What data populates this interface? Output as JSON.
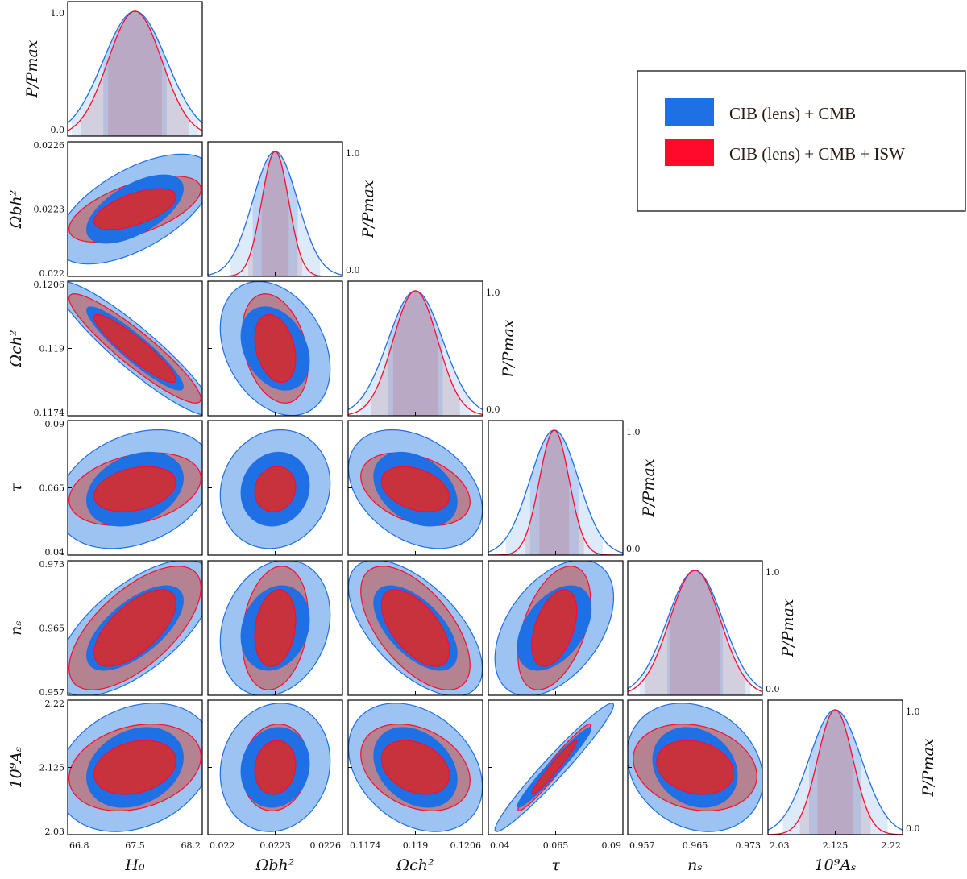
{
  "chart_data": {
    "type": "triangle",
    "parameters": [
      {
        "key": "H0",
        "label": "H₀",
        "ticks": [
          "66.8",
          "67.5",
          "68.2"
        ],
        "range": [
          66.8,
          68.2
        ]
      },
      {
        "key": "Obh2",
        "label": "Ωbh²",
        "ticks": [
          "0.022",
          "0.0223",
          "0.0226"
        ],
        "range": [
          0.022,
          0.0226
        ]
      },
      {
        "key": "Och2",
        "label": "Ωch²",
        "ticks": [
          "0.1174",
          "0.119",
          "0.1206"
        ],
        "range": [
          0.1174,
          0.1206
        ]
      },
      {
        "key": "tau",
        "label": "τ",
        "ticks": [
          "0.04",
          "0.065",
          "0.09"
        ],
        "range": [
          0.04,
          0.09
        ]
      },
      {
        "key": "ns",
        "label": "nₛ",
        "ticks": [
          "0.957",
          "0.965",
          "0.973"
        ],
        "range": [
          0.957,
          0.973
        ]
      },
      {
        "key": "As",
        "label": "10⁹Aₛ",
        "ticks": [
          "2.03",
          "2.125",
          "2.22"
        ],
        "range": [
          2.03,
          2.22
        ]
      }
    ],
    "pmax_label": "P/Pmax",
    "pmax_ticks": [
      "0.0",
      "1.0"
    ],
    "series": [
      {
        "name": "CIB (lens) + CMB",
        "color": "#1f6fe5",
        "fill68": "#1f6fe5",
        "fill95": "#9cc3f2",
        "means": [
          67.5,
          0.0223,
          0.119,
          0.0645,
          0.965,
          2.125
        ],
        "sigma": [
          0.33,
          0.0001,
          0.00065,
          0.009,
          0.0033,
          0.037
        ]
      },
      {
        "name": "CIB (lens) + CMB + ISW",
        "color": "#ff0a2a",
        "fill68": "#c8323c",
        "fill95": "#b48290",
        "means": [
          67.5,
          0.0223,
          0.119,
          0.0645,
          0.965,
          2.125
        ],
        "sigma": [
          0.28,
          6e-05,
          0.00053,
          0.0055,
          0.003,
          0.025
        ]
      }
    ],
    "correlations": {
      "1,0": 0.6,
      "2,0": -0.92,
      "2,1": -0.3,
      "3,0": 0.3,
      "3,1": 0.1,
      "3,2": -0.35,
      "4,0": 0.65,
      "4,1": 0.2,
      "4,2": -0.6,
      "4,3": 0.45,
      "5,0": 0.25,
      "5,1": 0.1,
      "5,2": -0.3,
      "5,3": 0.97,
      "5,4": -0.2
    }
  },
  "legend": {
    "entries": [
      {
        "label": "CIB (lens) + CMB",
        "color": "#1f6fe5"
      },
      {
        "label": "CIB (lens) + CMB + ISW",
        "color": "#ff0a2a"
      }
    ]
  }
}
